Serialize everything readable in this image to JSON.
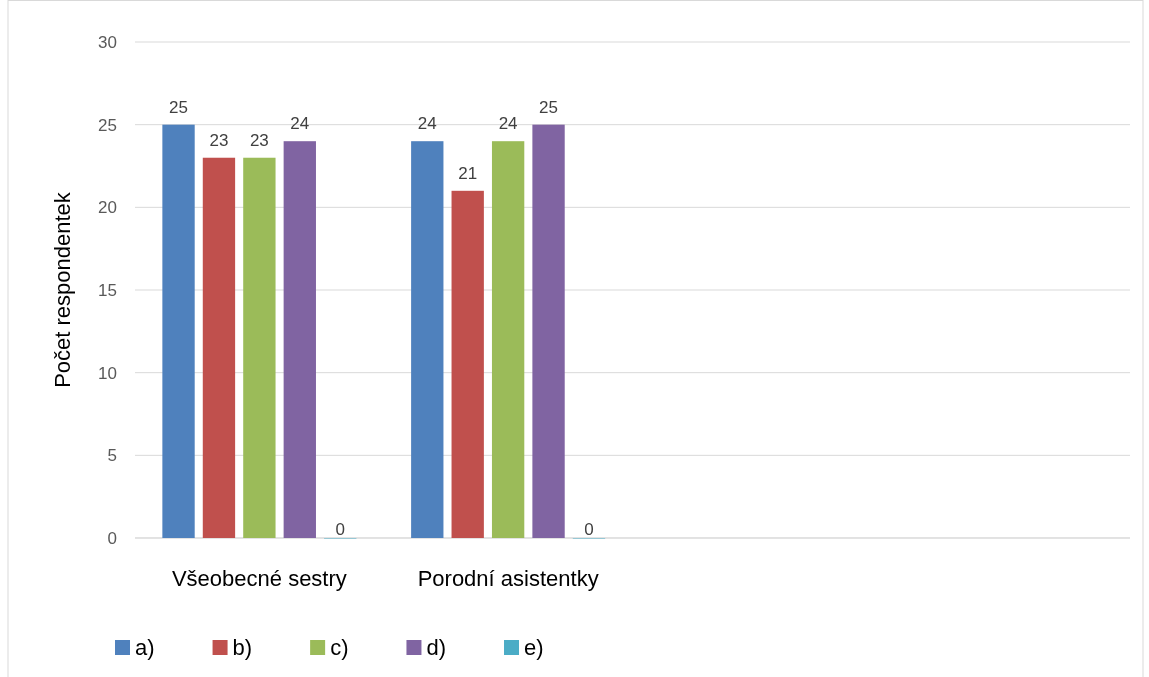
{
  "chart_data": {
    "type": "bar",
    "ylabel": "Počet respondentek",
    "categories": [
      "Všeobecné sestry",
      "Porodní asistentky",
      null,
      null
    ],
    "series": [
      {
        "name": "a)",
        "color": "#4f81bd",
        "values": [
          25,
          24,
          null,
          null
        ]
      },
      {
        "name": "b)",
        "color": "#c0504d",
        "values": [
          23,
          21,
          null,
          null
        ]
      },
      {
        "name": "c)",
        "color": "#9bbb59",
        "values": [
          23,
          24,
          null,
          null
        ]
      },
      {
        "name": "d)",
        "color": "#8064a2",
        "values": [
          24,
          25,
          null,
          null
        ]
      },
      {
        "name": "e)",
        "color": "#4bacc6",
        "values": [
          0,
          0,
          null,
          null
        ]
      }
    ],
    "ylim": [
      0,
      30
    ],
    "yticks": [
      0,
      5,
      10,
      15,
      20,
      25,
      30
    ],
    "grid": "y",
    "data_labels": true,
    "legend": "bottom"
  }
}
